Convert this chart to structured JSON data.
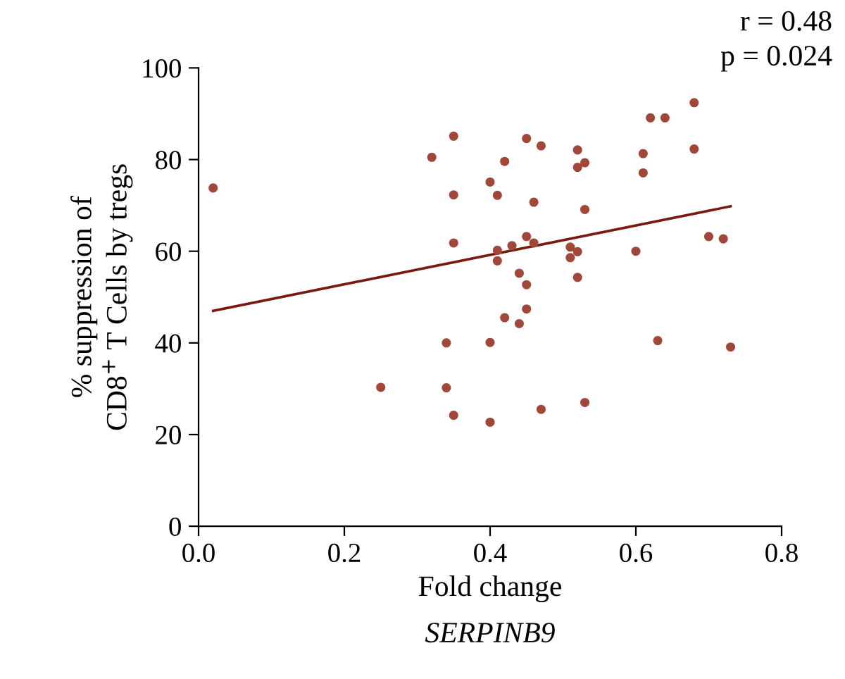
{
  "chart_data": {
    "type": "scatter",
    "xlabel": "Fold change",
    "ylabel": "% suppression of\nCD8$^{+}$ T Cells by tregs",
    "annotations": [
      "r = 0.48\np = 0.024",
      "SERPINB9"
    ],
    "xlim": [
      0,
      0.8
    ],
    "xticks": [
      {
        "value": 0,
        "label": "0.0"
      },
      0.2,
      0.4,
      0.6,
      0.8
    ],
    "ylim": [
      0,
      100
    ],
    "yticks": [
      0,
      20,
      40,
      60,
      80,
      100
    ],
    "grid": false,
    "legend": false,
    "marker": "circle",
    "series": [
      {
        "color": "#a0473a",
        "x": [
          0.02,
          0.25,
          0.32,
          0.34,
          0.34,
          0.35,
          0.35,
          0.35,
          0.35,
          0.4,
          0.4,
          0.4,
          0.41,
          0.41,
          0.41,
          0.42,
          0.42,
          0.43,
          0.44,
          0.44,
          0.45,
          0.45,
          0.45,
          0.45,
          0.46,
          0.46,
          0.47,
          0.47,
          0.51,
          0.51,
          0.52,
          0.52,
          0.52,
          0.52,
          0.53,
          0.53,
          0.53,
          0.6,
          0.61,
          0.61,
          0.62,
          0.63,
          0.64,
          0.68,
          0.68,
          0.7,
          0.72,
          0.73
        ],
        "values": [
          73.8,
          30.3,
          80.5,
          40.0,
          30.2,
          85.1,
          72.3,
          61.8,
          24.2,
          75.1,
          40.1,
          22.7,
          60.2,
          57.9,
          72.2,
          45.5,
          79.6,
          61.2,
          55.2,
          44.2,
          63.2,
          52.7,
          47.4,
          84.6,
          70.7,
          61.8,
          83.0,
          25.5,
          60.9,
          58.6,
          82.1,
          78.3,
          59.9,
          54.3,
          79.3,
          69.1,
          27.0,
          60.0,
          81.3,
          77.1,
          89.1,
          40.5,
          89.1,
          92.4,
          82.3,
          63.2,
          62.7,
          39.1
        ]
      },
      {
        "type": "line",
        "color": "#7a1a0e",
        "x": [
          0.02,
          0.73
        ],
        "values": [
          47.0,
          69.8
        ],
        "marker": "none",
        "line_style": "solid"
      }
    ]
  }
}
